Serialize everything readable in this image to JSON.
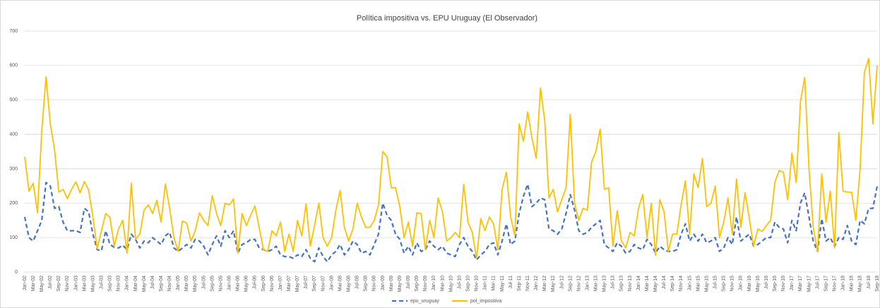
{
  "chart_data": {
    "type": "line",
    "title": "Política impositiva vs. EPU Uruguay (El Observador)",
    "categories": [
      "Jan-02",
      null,
      "Mar-02",
      null,
      "May-02",
      null,
      "Jul-02",
      null,
      "Sep-02",
      null,
      "Nov-02",
      null,
      "Jan-03",
      null,
      "Mar-03",
      null,
      "May-03",
      null,
      "Jul-03",
      null,
      "Sep-03",
      null,
      "Nov-03",
      null,
      "Jan-04",
      null,
      "Mar-04",
      null,
      "May-04",
      null,
      "Jul-04",
      null,
      "Sep-04",
      null,
      "Nov-04",
      null,
      "Jan-05",
      null,
      "Mar-05",
      null,
      "May-05",
      null,
      "Jul-05",
      null,
      "Sep-05",
      null,
      "Nov-05",
      null,
      "Jan-06",
      null,
      "Mar-06",
      null,
      "May-06",
      null,
      "Jul-06",
      null,
      "Sep-06",
      null,
      "Nov-06",
      null,
      "Jan-07",
      null,
      "Mar-07",
      null,
      "May-07",
      null,
      "Jul-07",
      null,
      "Sep-07",
      null,
      "Nov-07",
      null,
      "Jan-08",
      null,
      "Mar-08",
      null,
      "May-08",
      null,
      "Jul-08",
      null,
      "Sep-08",
      null,
      "Nov-08",
      null,
      "Jan-09",
      null,
      "Mar-09",
      null,
      "May-09",
      null,
      "Jul-09",
      null,
      "Sep-09",
      null,
      "Nov-09",
      null,
      "Jan-10",
      null,
      "Mar-10",
      null,
      "May-10",
      null,
      "Jul-10",
      null,
      "Sep-10",
      null,
      "Nov-10",
      null,
      "Jan-11",
      null,
      "Mar-11",
      null,
      "May-11",
      null,
      "Jul-11",
      null,
      "Sep-11",
      null,
      "Nov-11",
      null,
      "Jan-12",
      null,
      "Mar-12",
      null,
      "May-12",
      null,
      "Jul-12",
      null,
      "Sep-12",
      null,
      "Nov-12",
      null,
      "Jan-13",
      null,
      "Mar-13",
      null,
      "May-13",
      null,
      "Jul-13",
      null,
      "Sep-13",
      null,
      "Nov-13",
      null,
      "Jan-14",
      null,
      "Mar-14",
      null,
      "May-14",
      null,
      "Jul-14",
      null,
      "Sep-14",
      null,
      "Nov-14",
      null,
      "Jan-15",
      null,
      "Mar-15",
      null,
      "May-15",
      null,
      "Jul-15",
      null,
      "Sep-15",
      null,
      "Nov-15",
      null,
      "Jan-16",
      null,
      "Mar-16",
      null,
      "May-16",
      null,
      "Jul-16",
      null,
      "Sep-16",
      null,
      "Nov-16",
      null,
      "Jan-17",
      null,
      "Mar-17",
      null,
      "May-17",
      null,
      "Jul-17",
      null,
      "Sep-17",
      null,
      "Nov-17",
      null,
      "Jan-18",
      null,
      "Mar-18",
      null,
      "May-18",
      null,
      "Jul-18",
      null,
      "Sep-18"
    ],
    "series": [
      {
        "name": "epu_uruguay",
        "color": "#4472c4",
        "dash": true,
        "values": [
          160,
          100,
          90,
          120,
          150,
          260,
          250,
          185,
          190,
          145,
          120,
          120,
          120,
          115,
          185,
          175,
          110,
          65,
          62,
          120,
          80,
          72,
          70,
          78,
          65,
          110,
          95,
          70,
          90,
          85,
          100,
          90,
          80,
          105,
          115,
          70,
          60,
          70,
          80,
          70,
          95,
          90,
          75,
          50,
          80,
          105,
          75,
          120,
          100,
          120,
          55,
          80,
          85,
          95,
          95,
          70,
          65,
          60,
          65,
          75,
          50,
          45,
          45,
          40,
          50,
          45,
          65,
          40,
          30,
          70,
          45,
          30,
          50,
          60,
          80,
          50,
          65,
          90,
          80,
          55,
          60,
          50,
          80,
          110,
          200,
          165,
          150,
          110,
          95,
          55,
          75,
          50,
          85,
          60,
          65,
          90,
          75,
          65,
          75,
          55,
          50,
          45,
          80,
          100,
          75,
          60,
          35,
          50,
          60,
          80,
          85,
          50,
          90,
          140,
          80,
          90,
          170,
          220,
          255,
          190,
          200,
          215,
          210,
          125,
          120,
          110,
          125,
          170,
          225,
          180,
          120,
          110,
          115,
          130,
          140,
          150,
          80,
          70,
          60,
          85,
          75,
          55,
          60,
          80,
          70,
          65,
          95,
          80,
          55,
          75,
          65,
          60,
          60,
          65,
          110,
          140,
          90,
          110,
          90,
          110,
          85,
          90,
          100,
          60,
          70,
          100,
          80,
          160,
          90,
          100,
          110,
          75,
          80,
          90,
          100,
          100,
          145,
          130,
          125,
          85,
          150,
          120,
          200,
          230,
          160,
          90,
          60,
          155,
          90,
          100,
          75,
          100,
          95,
          135,
          90,
          80,
          150,
          140,
          185,
          185,
          250
        ]
      },
      {
        "name": "pol_impositiva",
        "color": "#ffc000",
        "dash": false,
        "values": [
          335,
          235,
          258,
          172,
          410,
          567,
          430,
          355,
          232,
          240,
          213,
          240,
          262,
          230,
          263,
          238,
          160,
          68,
          120,
          170,
          158,
          75,
          125,
          150,
          55,
          258,
          95,
          110,
          180,
          195,
          170,
          208,
          145,
          256,
          185,
          100,
          60,
          148,
          142,
          90,
          120,
          172,
          150,
          135,
          222,
          170,
          135,
          200,
          195,
          212,
          55,
          170,
          135,
          165,
          192,
          130,
          65,
          60,
          120,
          105,
          145,
          60,
          110,
          60,
          150,
          105,
          198,
          75,
          135,
          200,
          100,
          75,
          100,
          180,
          237,
          130,
          90,
          125,
          200,
          160,
          130,
          130,
          150,
          195,
          350,
          335,
          245,
          245,
          190,
          100,
          145,
          75,
          172,
          170,
          65,
          150,
          100,
          215,
          175,
          90,
          100,
          115,
          100,
          255,
          145,
          115,
          40,
          155,
          120,
          160,
          140,
          65,
          240,
          290,
          160,
          105,
          430,
          380,
          465,
          390,
          330,
          535,
          440,
          215,
          240,
          175,
          210,
          245,
          458,
          200,
          150,
          185,
          180,
          320,
          350,
          415,
          240,
          245,
          75,
          178,
          90,
          70,
          115,
          105,
          185,
          225,
          100,
          200,
          48,
          210,
          175,
          60,
          110,
          110,
          195,
          265,
          110,
          285,
          245,
          330,
          190,
          200,
          250,
          100,
          145,
          215,
          110,
          270,
          130,
          230,
          155,
          75,
          125,
          118,
          135,
          150,
          260,
          295,
          290,
          210,
          345,
          260,
          495,
          565,
          300,
          130,
          60,
          285,
          145,
          235,
          70,
          405,
          235,
          232,
          232,
          150,
          300,
          580,
          620,
          430,
          600
        ]
      }
    ],
    "ylim": [
      0,
      700
    ],
    "yticks": [
      0,
      100,
      200,
      300,
      400,
      500,
      600,
      700
    ],
    "grid": true,
    "legend": "bottom"
  }
}
